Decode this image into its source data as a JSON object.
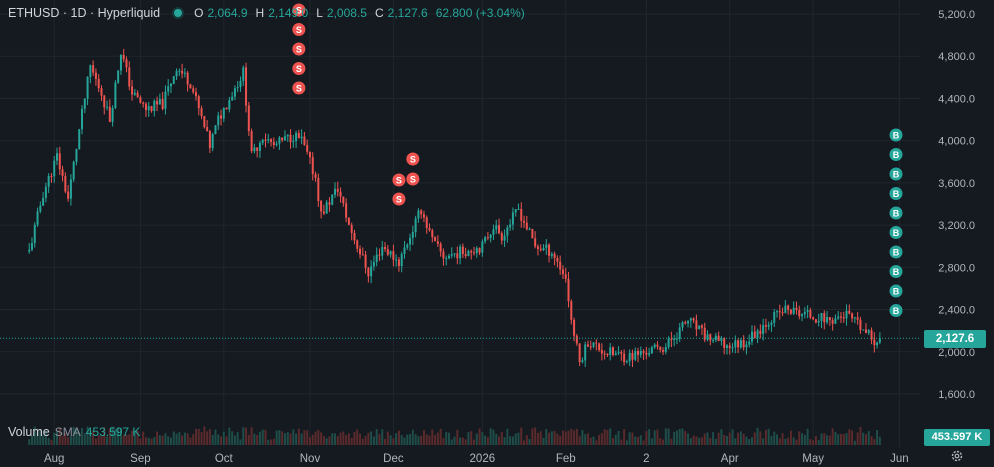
{
  "legend": {
    "symbol": "ETHUSD · 1D · Hyperliquid",
    "o_key": "O",
    "o_val": "2,064.9",
    "h_key": "H",
    "h_val": "2,149.0",
    "l_key": "L",
    "l_val": "2,008.5",
    "c_key": "C",
    "c_val": "2,127.6",
    "change": "62.800 (+3.04%)"
  },
  "volume": {
    "label": "Volume",
    "sma_label": "SMA",
    "value": "453.597 K"
  },
  "price_tag": "2,127.6",
  "volume_tag": "453.597 K",
  "icons": {
    "status": "green-dot-icon",
    "settings": "gear-icon"
  },
  "colors": {
    "up": "#26a69a",
    "down": "#ef5350",
    "background": "#141a1f",
    "grid": "#1f262c"
  },
  "chart_data": {
    "type": "candlestick",
    "title": "ETHUSD · 1D · Hyperliquid",
    "y_ticks": [
      "5,200.0",
      "4,800.0",
      "4,400.0",
      "4,000.0",
      "3,600.0",
      "3,200.0",
      "2,800.0",
      "2,400.0",
      "2,000.0",
      "1,600.0"
    ],
    "ylim": [
      1450,
      5300
    ],
    "x_ticks": [
      "Aug",
      "Sep",
      "Oct",
      "Nov",
      "Dec",
      "2026",
      "Feb",
      "2",
      "Apr",
      "May",
      "Jun"
    ],
    "series_close_approx": [
      {
        "x": "2025-07-22",
        "y": 2950
      },
      {
        "x": "2025-07-27",
        "y": 3500
      },
      {
        "x": "2025-08-01",
        "y": 3850
      },
      {
        "x": "2025-08-05",
        "y": 3450
      },
      {
        "x": "2025-08-09",
        "y": 4100
      },
      {
        "x": "2025-08-13",
        "y": 4700
      },
      {
        "x": "2025-08-17",
        "y": 4450
      },
      {
        "x": "2025-08-20",
        "y": 4200
      },
      {
        "x": "2025-08-24",
        "y": 4850
      },
      {
        "x": "2025-08-28",
        "y": 4450
      },
      {
        "x": "2025-09-02",
        "y": 4300
      },
      {
        "x": "2025-09-08",
        "y": 4350
      },
      {
        "x": "2025-09-13",
        "y": 4700
      },
      {
        "x": "2025-09-18",
        "y": 4550
      },
      {
        "x": "2025-09-25",
        "y": 3950
      },
      {
        "x": "2025-09-28",
        "y": 4200
      },
      {
        "x": "2025-10-04",
        "y": 4500
      },
      {
        "x": "2025-10-07",
        "y": 4650
      },
      {
        "x": "2025-10-10",
        "y": 3850
      },
      {
        "x": "2025-10-14",
        "y": 4050
      },
      {
        "x": "2025-10-18",
        "y": 3950
      },
      {
        "x": "2025-10-25",
        "y": 4050
      },
      {
        "x": "2025-10-28",
        "y": 4000
      },
      {
        "x": "2025-11-02",
        "y": 3650
      },
      {
        "x": "2025-11-04",
        "y": 3300
      },
      {
        "x": "2025-11-10",
        "y": 3550
      },
      {
        "x": "2025-11-14",
        "y": 3200
      },
      {
        "x": "2025-11-21",
        "y": 2750
      },
      {
        "x": "2025-11-26",
        "y": 3000
      },
      {
        "x": "2025-12-02",
        "y": 2850
      },
      {
        "x": "2025-12-06",
        "y": 3100
      },
      {
        "x": "2025-12-10",
        "y": 3350
      },
      {
        "x": "2025-12-14",
        "y": 3050
      },
      {
        "x": "2025-12-18",
        "y": 2900
      },
      {
        "x": "2025-12-25",
        "y": 2950
      },
      {
        "x": "2026-01-01",
        "y": 3000
      },
      {
        "x": "2026-01-05",
        "y": 3200
      },
      {
        "x": "2026-01-08",
        "y": 3100
      },
      {
        "x": "2026-01-14",
        "y": 3350
      },
      {
        "x": "2026-01-20",
        "y": 3000
      },
      {
        "x": "2026-01-26",
        "y": 2950
      },
      {
        "x": "2026-01-31",
        "y": 2700
      },
      {
        "x": "2026-02-02",
        "y": 2300
      },
      {
        "x": "2026-02-05",
        "y": 1900
      },
      {
        "x": "2026-02-08",
        "y": 2100
      },
      {
        "x": "2026-02-14",
        "y": 2000
      },
      {
        "x": "2026-02-22",
        "y": 1950
      },
      {
        "x": "2026-03-01",
        "y": 2000
      },
      {
        "x": "2026-03-08",
        "y": 2050
      },
      {
        "x": "2026-03-16",
        "y": 2300
      },
      {
        "x": "2026-03-22",
        "y": 2150
      },
      {
        "x": "2026-03-30",
        "y": 2050
      },
      {
        "x": "2026-04-06",
        "y": 2100
      },
      {
        "x": "2026-04-14",
        "y": 2300
      },
      {
        "x": "2026-04-20",
        "y": 2400
      },
      {
        "x": "2026-04-28",
        "y": 2350
      },
      {
        "x": "2026-05-06",
        "y": 2300
      },
      {
        "x": "2026-05-12",
        "y": 2350
      },
      {
        "x": "2026-05-18",
        "y": 2200
      },
      {
        "x": "2026-05-22",
        "y": 2100
      },
      {
        "x": "2026-05-24",
        "y": 2127.6
      }
    ],
    "sell_markers": [
      {
        "x": "2025-10-27",
        "label": "S",
        "count": 5
      },
      {
        "x": "2025-12-02",
        "label": "S",
        "count": 2
      },
      {
        "x": "2025-12-07",
        "label": "S",
        "count": 2
      }
    ],
    "buy_markers": [
      {
        "x": "2026-05-24",
        "label": "B",
        "count": 10
      }
    ],
    "last_price": 2127.6,
    "volume_sma": "453.597 K"
  }
}
